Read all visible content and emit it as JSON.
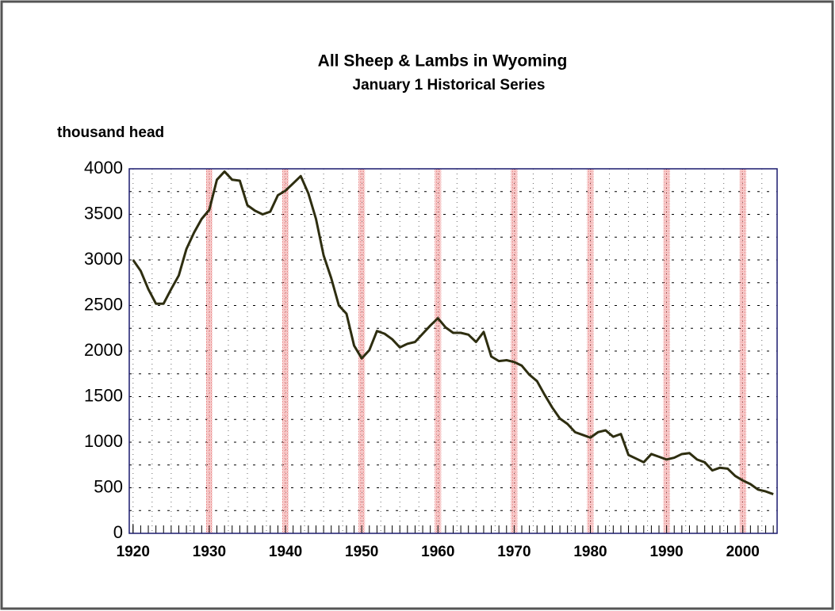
{
  "chart_data": {
    "type": "line",
    "title": "All Sheep & Lambs in Wyoming",
    "subtitle": "January 1 Historical Series",
    "y_label": "thousand head",
    "x": [
      1920,
      1921,
      1922,
      1923,
      1924,
      1925,
      1926,
      1927,
      1928,
      1929,
      1930,
      1931,
      1932,
      1933,
      1934,
      1935,
      1936,
      1937,
      1938,
      1939,
      1940,
      1941,
      1942,
      1943,
      1944,
      1945,
      1946,
      1947,
      1948,
      1949,
      1950,
      1951,
      1952,
      1953,
      1954,
      1955,
      1956,
      1957,
      1958,
      1959,
      1960,
      1961,
      1962,
      1963,
      1964,
      1965,
      1966,
      1967,
      1968,
      1969,
      1970,
      1971,
      1972,
      1973,
      1974,
      1975,
      1976,
      1977,
      1978,
      1979,
      1980,
      1981,
      1982,
      1983,
      1984,
      1985,
      1986,
      1987,
      1988,
      1989,
      1990,
      1991,
      1992,
      1993,
      1994,
      1995,
      1996,
      1997,
      1998,
      1999,
      2000,
      2001,
      2002,
      2003,
      2004
    ],
    "series": [
      {
        "name": "All Sheep & Lambs",
        "color": "#2e2e10",
        "values": [
          3000,
          2880,
          2680,
          2520,
          2520,
          2680,
          2830,
          3120,
          3300,
          3450,
          3550,
          3880,
          3970,
          3880,
          3870,
          3600,
          3540,
          3500,
          3530,
          3710,
          3760,
          3840,
          3920,
          3730,
          3450,
          3050,
          2800,
          2500,
          2410,
          2060,
          1920,
          2010,
          2220,
          2190,
          2130,
          2040,
          2080,
          2100,
          2190,
          2280,
          2360,
          2260,
          2200,
          2200,
          2180,
          2100,
          2210,
          1940,
          1890,
          1900,
          1880,
          1840,
          1740,
          1670,
          1520,
          1380,
          1260,
          1200,
          1110,
          1080,
          1050,
          1110,
          1130,
          1060,
          1090,
          860,
          820,
          780,
          870,
          840,
          810,
          830,
          870,
          880,
          810,
          780,
          690,
          720,
          710,
          630,
          580,
          540,
          480,
          460,
          430
        ]
      }
    ],
    "xlim": [
      1919.5,
      2004.5
    ],
    "xticks": [
      1920,
      1930,
      1940,
      1950,
      1960,
      1970,
      1980,
      1990,
      2000
    ],
    "ylim": [
      0,
      4000
    ],
    "yticks": [
      0,
      500,
      1000,
      1500,
      2000,
      2500,
      3000,
      3500,
      4000
    ],
    "grid": true
  }
}
